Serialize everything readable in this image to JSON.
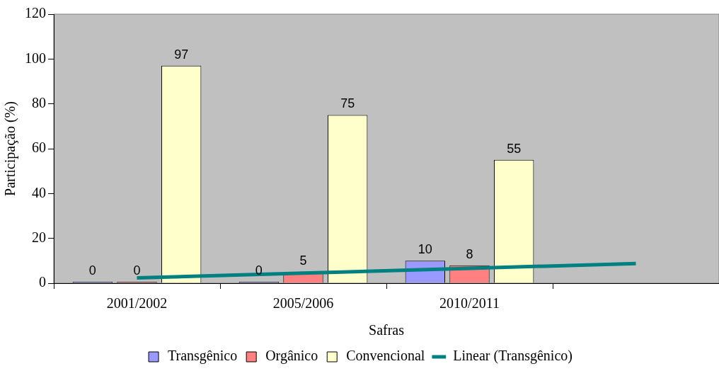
{
  "chart_data": {
    "type": "bar",
    "xlabel": "Safras",
    "ylabel": "Participação (%)",
    "categories": [
      "2001/2002",
      "2005/2006",
      "2010/2011",
      null
    ],
    "series": [
      {
        "name": "Transgênico",
        "color": "#9999ff",
        "values": [
          0,
          0,
          10,
          null
        ],
        "value_labels": [
          "0",
          "0",
          "10",
          null
        ]
      },
      {
        "name": "Orgânico",
        "color": "#ff8080",
        "values": [
          0,
          5,
          8,
          null
        ],
        "value_labels": [
          "0",
          "5",
          "8",
          null
        ]
      },
      {
        "name": "Convencional",
        "color": "#ffffcc",
        "values": [
          97,
          75,
          55,
          null
        ],
        "value_labels": [
          "97",
          "75",
          "55",
          null
        ]
      },
      {
        "name": "Linear (Transgênico)",
        "type": "line",
        "color": "#008080",
        "values": [
          2.4,
          4.5,
          6.6,
          8.8
        ]
      }
    ],
    "ylim": [
      0,
      120
    ],
    "yticks": [
      0,
      20,
      40,
      60,
      80,
      100,
      120
    ],
    "grid": false,
    "legend": "bottom",
    "marker": "none"
  }
}
